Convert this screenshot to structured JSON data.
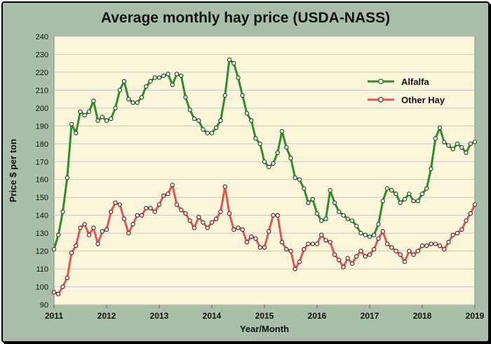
{
  "chart_data": {
    "type": "line",
    "title": "Average monthly hay price (USDA-NASS)",
    "xlabel": "Year/Month",
    "ylabel": "Price $ per ton",
    "ylim": [
      90,
      240
    ],
    "yticks": [
      90,
      100,
      110,
      120,
      130,
      140,
      150,
      160,
      170,
      180,
      190,
      200,
      210,
      220,
      230,
      240
    ],
    "xlim": [
      2011,
      2019
    ],
    "xticks": [
      "2011",
      "2012",
      "2013",
      "2014",
      "2015",
      "2016",
      "2017",
      "2018",
      "2019"
    ],
    "x_start_year": 2011,
    "points_per_year": 12,
    "grid": "horizontal",
    "legend_position": "right",
    "colors": {
      "Alfalfa": "#2e8b2e",
      "Other Hay": "#e05555"
    },
    "series": [
      {
        "name": "Alfalfa",
        "values": [
          121,
          129,
          142,
          161,
          191,
          186,
          198,
          196,
          198,
          204,
          193,
          195,
          193,
          194,
          200,
          210,
          215,
          205,
          203,
          203,
          206,
          212,
          215,
          217,
          217,
          218,
          219,
          213,
          219,
          218,
          206,
          199,
          194,
          193,
          188,
          186,
          186,
          189,
          193,
          207,
          227,
          225,
          217,
          207,
          197,
          193,
          183,
          180,
          170,
          167,
          169,
          175,
          187,
          178,
          172,
          161,
          160,
          155,
          147,
          149,
          141,
          137,
          138,
          154,
          147,
          142,
          140,
          138,
          137,
          134,
          130,
          129,
          128,
          129,
          135,
          148,
          155,
          154,
          152,
          147,
          149,
          152,
          148,
          148,
          152,
          155,
          166,
          183,
          189,
          181,
          179,
          177,
          180,
          178,
          175,
          180,
          181
        ]
      },
      {
        "name": "Other Hay",
        "values": [
          97,
          96,
          100,
          105,
          119,
          123,
          133,
          135,
          129,
          133,
          124,
          131,
          132,
          142,
          147,
          146,
          138,
          130,
          135,
          140,
          140,
          144,
          144,
          142,
          146,
          151,
          152,
          157,
          146,
          143,
          141,
          137,
          133,
          139,
          136,
          133,
          136,
          138,
          142,
          156,
          141,
          132,
          133,
          132,
          125,
          128,
          127,
          122,
          122,
          131,
          140,
          140,
          125,
          121,
          120,
          110,
          114,
          121,
          124,
          124,
          124,
          129,
          126,
          125,
          118,
          115,
          111,
          116,
          113,
          117,
          120,
          117,
          118,
          121,
          127,
          131,
          124,
          122,
          120,
          118,
          114,
          120,
          118,
          120,
          123,
          123,
          124,
          124,
          123,
          121,
          125,
          129,
          130,
          132,
          137,
          141,
          146
        ]
      }
    ]
  }
}
